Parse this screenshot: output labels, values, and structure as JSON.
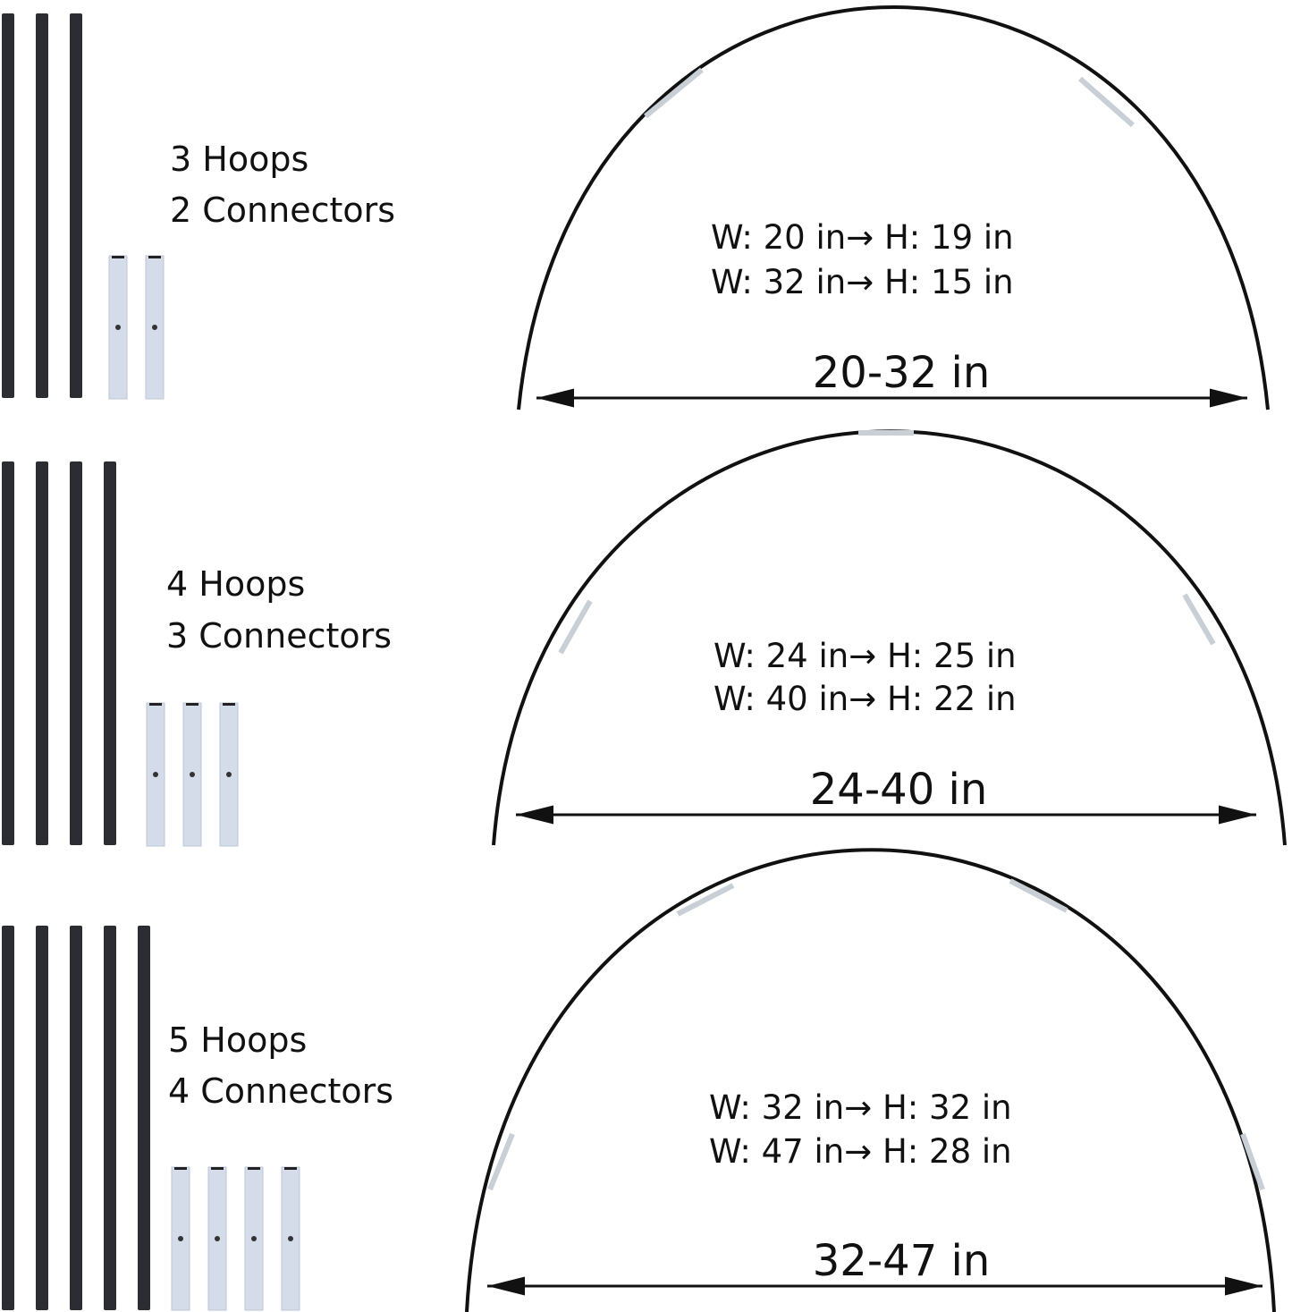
{
  "panels": [
    {
      "hoops_label": "3 Hoops",
      "connectors_label": "2 Connectors",
      "size_lines": [
        "W: 20 in→ H: 19 in",
        "W: 32 in→ H: 15 in"
      ],
      "range_label": "20-32 in",
      "rod_count": 3,
      "connector_count": 2
    },
    {
      "hoops_label": "4 Hoops",
      "connectors_label": "3 Connectors",
      "size_lines": [
        "W: 24 in→ H: 25 in",
        "W: 40 in→ H: 22 in"
      ],
      "range_label": "24-40 in",
      "rod_count": 4,
      "connector_count": 3
    },
    {
      "hoops_label": "5 Hoops",
      "connectors_label": "4 Connectors",
      "size_lines": [
        "W: 32 in→ H: 32 in",
        "W: 47 in→ H: 28 in"
      ],
      "range_label": "32-47 in",
      "rod_count": 5,
      "connector_count": 4
    }
  ],
  "colors": {
    "rod": "#2b2d33",
    "connector": "#d4dcea",
    "arc": "#111111"
  }
}
